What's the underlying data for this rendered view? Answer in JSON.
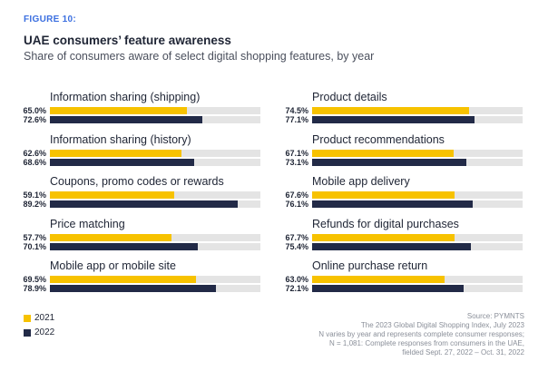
{
  "figure_label": "FIGURE 10:",
  "title": "UAE consumers’ feature awareness",
  "subtitle": "Share of consumers aware of select digital shopping features, by year",
  "chart_data": {
    "type": "bar",
    "orientation": "horizontal",
    "xlim": [
      0,
      100
    ],
    "unit": "%",
    "series": [
      {
        "name": "2021",
        "color": "#f7c200"
      },
      {
        "name": "2022",
        "color": "#222a47"
      }
    ],
    "groups": [
      {
        "label": "Information sharing (shipping)",
        "values": [
          65.0,
          72.6
        ],
        "labels": [
          "65.0%",
          "72.6%"
        ]
      },
      {
        "label": "Information sharing (history)",
        "values": [
          62.6,
          68.6
        ],
        "labels": [
          "62.6%",
          "68.6%"
        ]
      },
      {
        "label": "Coupons, promo codes or rewards",
        "values": [
          59.1,
          89.2
        ],
        "labels": [
          "59.1%",
          "89.2%"
        ]
      },
      {
        "label": "Price matching",
        "values": [
          57.7,
          70.1
        ],
        "labels": [
          "57.7%",
          "70.1%"
        ]
      },
      {
        "label": "Mobile app or mobile site",
        "values": [
          69.5,
          78.9
        ],
        "labels": [
          "69.5%",
          "78.9%"
        ]
      },
      {
        "label": "Product details",
        "values": [
          74.5,
          77.1
        ],
        "labels": [
          "74.5%",
          "77.1%"
        ]
      },
      {
        "label": "Product recommendations",
        "values": [
          67.1,
          73.1
        ],
        "labels": [
          "67.1%",
          "73.1%"
        ]
      },
      {
        "label": "Mobile app delivery",
        "values": [
          67.6,
          76.1
        ],
        "labels": [
          "67.6%",
          "76.1%"
        ]
      },
      {
        "label": "Refunds for digital purchases",
        "values": [
          67.7,
          75.4
        ],
        "labels": [
          "67.7%",
          "75.4%"
        ]
      },
      {
        "label": "Online purchase return",
        "values": [
          63.0,
          72.1
        ],
        "labels": [
          "63.0%",
          "72.1%"
        ]
      }
    ]
  },
  "legend": [
    {
      "label": "2021",
      "color": "#f7c200"
    },
    {
      "label": "2022",
      "color": "#222a47"
    }
  ],
  "source_lines": [
    "Source: PYMNTS",
    "The 2023 Global Digital Shopping Index, July 2023",
    "N varies by year and represents complete consumer responses;",
    "N = 1,081: Complete responses from consumers in the UAE,",
    "fielded Sept. 27, 2022 – Oct. 31, 2022"
  ]
}
